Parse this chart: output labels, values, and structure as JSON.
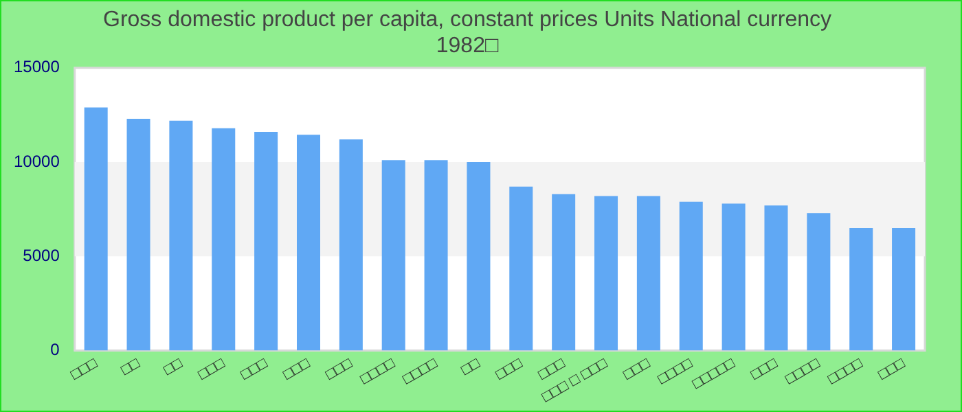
{
  "chart_data": {
    "type": "bar",
    "title": [
      "Gross domestic product per capita, constant prices Units National currency",
      "1982□"
    ],
    "categories": [
      "□□□",
      "□□",
      "□□",
      "□□□",
      "□□□",
      "□□□",
      "□□□",
      "□□□□",
      "□□□□",
      "□□",
      "□□□",
      "□□□",
      "□□□ □ □□□",
      "□□□",
      "□□□□",
      "□□□□□",
      "□□□",
      "□□□□",
      "□□□□",
      "□□□"
    ],
    "values": [
      12900,
      12300,
      12200,
      11800,
      11600,
      11450,
      11200,
      10100,
      10100,
      10000,
      8700,
      8300,
      8200,
      8200,
      7900,
      7800,
      7700,
      7300,
      6500,
      6500
    ],
    "color": "#60a8f4",
    "ylim": [
      0,
      15000
    ],
    "yticks": [
      0,
      5000,
      10000,
      15000
    ],
    "bands": [
      {
        "axis": "y",
        "from": 5000,
        "to": 10000,
        "color": "#f3f3f3"
      }
    ],
    "legend": false
  }
}
